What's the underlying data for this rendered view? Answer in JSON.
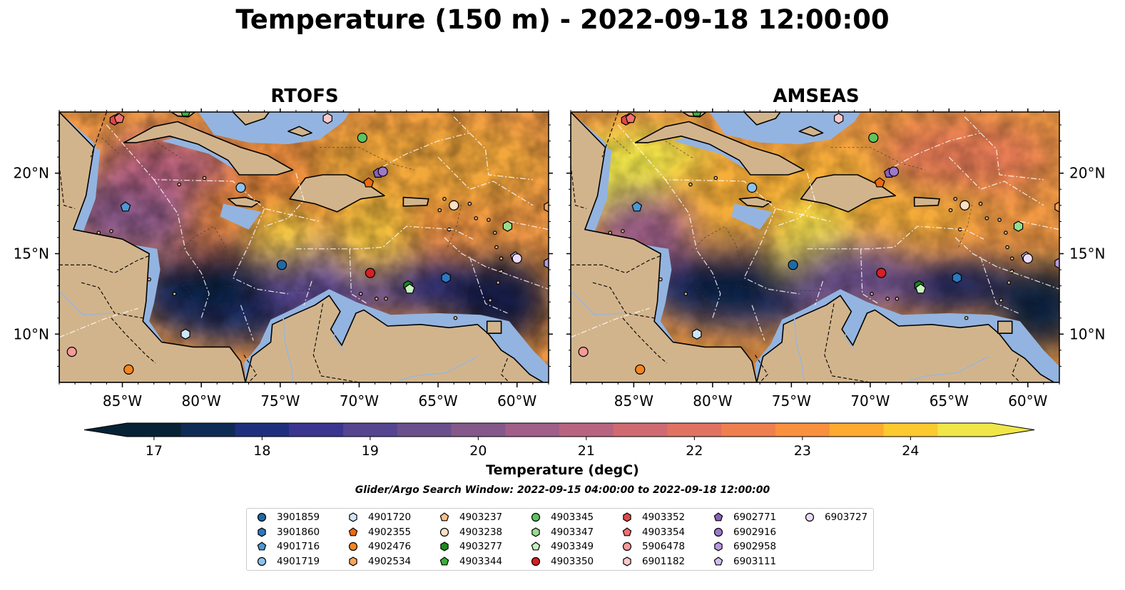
{
  "title": "Temperature (150 m) - 2022-09-18 12:00:00",
  "panels": [
    {
      "title": "RTOFS"
    },
    {
      "title": "AMSEAS"
    }
  ],
  "axes": {
    "lon_ticks": [
      "85°W",
      "80°W",
      "75°W",
      "70°W",
      "65°W",
      "60°W"
    ],
    "lat_ticks": [
      "20°N",
      "15°N",
      "10°N"
    ]
  },
  "colorbar": {
    "label": "Temperature (degC)",
    "ticks": [
      "17",
      "18",
      "19",
      "20",
      "21",
      "22",
      "23",
      "24"
    ],
    "range": [
      16.75,
      24.75
    ],
    "colors": [
      "#082235",
      "#0e2b55",
      "#1f2f7d",
      "#3a3590",
      "#55448f",
      "#6b4f8c",
      "#85588b",
      "#a05e88",
      "#b86480",
      "#cf6a72",
      "#e07262",
      "#ef7f4f",
      "#f9903e",
      "#fdaa30",
      "#fcc92f",
      "#f0e64a"
    ]
  },
  "search_window": "Glider/Argo Search Window: 2022-09-15 04:00:00 to 2022-09-18 12:00:00",
  "legend": [
    {
      "id": "3901859",
      "marker": "circle",
      "color": "#1f6aa5"
    },
    {
      "id": "3901860",
      "marker": "hexagon",
      "color": "#2b79c2"
    },
    {
      "id": "4901716",
      "marker": "pentagon",
      "color": "#4a98d6"
    },
    {
      "id": "4901719",
      "marker": "circle",
      "color": "#8cc3ee"
    },
    {
      "id": "4901720",
      "marker": "hexagon",
      "color": "#cfe6f8"
    },
    {
      "id": "4902355",
      "marker": "pentagon",
      "color": "#ee6a10"
    },
    {
      "id": "4902476",
      "marker": "circle",
      "color": "#f7851e"
    },
    {
      "id": "4902534",
      "marker": "hexagon",
      "color": "#fba65c"
    },
    {
      "id": "4903237",
      "marker": "pentagon",
      "color": "#fcc08a"
    },
    {
      "id": "4903238",
      "marker": "circle",
      "color": "#fde0c4"
    },
    {
      "id": "4903277",
      "marker": "hexagon",
      "color": "#1d8a1d"
    },
    {
      "id": "4903344",
      "marker": "pentagon",
      "color": "#3cb03c"
    },
    {
      "id": "4903345",
      "marker": "circle",
      "color": "#5ec45e"
    },
    {
      "id": "4903347",
      "marker": "hexagon",
      "color": "#98dc90"
    },
    {
      "id": "4903349",
      "marker": "pentagon",
      "color": "#c8f0c0"
    },
    {
      "id": "4903350",
      "marker": "circle",
      "color": "#d62022"
    },
    {
      "id": "4903352",
      "marker": "hexagon",
      "color": "#e04848"
    },
    {
      "id": "4903354",
      "marker": "pentagon",
      "color": "#f07070"
    },
    {
      "id": "5906478",
      "marker": "circle",
      "color": "#f79a98"
    },
    {
      "id": "6901182",
      "marker": "hexagon",
      "color": "#fccaca"
    },
    {
      "id": "6902771",
      "marker": "pentagon",
      "color": "#8a62b8"
    },
    {
      "id": "6902916",
      "marker": "circle",
      "color": "#9d78cc"
    },
    {
      "id": "6902958",
      "marker": "hexagon",
      "color": "#b89ae0"
    },
    {
      "id": "6903111",
      "marker": "pentagon",
      "color": "#d2bdf0"
    },
    {
      "id": "6903727",
      "marker": "circle",
      "color": "#ecdcfa"
    }
  ],
  "chart_data": {
    "type": "map",
    "lon_range": [
      -89,
      -58
    ],
    "lat_range": [
      7,
      23.8
    ],
    "markers": [
      {
        "id": "3901859",
        "lon": -74.9,
        "lat": 14.3
      },
      {
        "id": "3901860",
        "lon": -64.5,
        "lat": 13.5
      },
      {
        "id": "4901716",
        "lon": -84.8,
        "lat": 17.9
      },
      {
        "id": "4901719",
        "lon": -77.5,
        "lat": 19.1
      },
      {
        "id": "4901720",
        "lon": -81.0,
        "lat": 10.0
      },
      {
        "id": "4902355",
        "lon": -69.4,
        "lat": 19.4
      },
      {
        "id": "4902476",
        "lon": -84.6,
        "lat": 7.8
      },
      {
        "id": "4902534",
        "lon": -58.0,
        "lat": 17.9
      },
      {
        "id": "4903237",
        "lon": -85.3,
        "lat": 23.4
      },
      {
        "id": "4903238",
        "lon": -64.0,
        "lat": 18.0
      },
      {
        "id": "4903277",
        "lon": -66.9,
        "lat": 13.0
      },
      {
        "id": "4903344",
        "lon": -81.0,
        "lat": 23.8
      },
      {
        "id": "4903345",
        "lon": -69.8,
        "lat": 22.2
      },
      {
        "id": "4903347",
        "lon": -60.6,
        "lat": 16.7
      },
      {
        "id": "4903349",
        "lon": -66.8,
        "lat": 12.8
      },
      {
        "id": "4903350",
        "lon": -69.3,
        "lat": 13.8
      },
      {
        "id": "4903352",
        "lon": -85.5,
        "lat": 23.3
      },
      {
        "id": "4903354",
        "lon": -85.2,
        "lat": 23.4
      },
      {
        "id": "5906478",
        "lon": -88.2,
        "lat": 8.9
      },
      {
        "id": "6901182",
        "lon": -72.0,
        "lat": 23.4
      },
      {
        "id": "6902771",
        "lon": -68.8,
        "lat": 20.0
      },
      {
        "id": "6902916",
        "lon": -68.5,
        "lat": 20.1
      },
      {
        "id": "6902958",
        "lon": -58.0,
        "lat": 14.4
      },
      {
        "id": "6903111",
        "lon": -60.1,
        "lat": 14.8
      },
      {
        "id": "6903727",
        "lon": -60.0,
        "lat": 14.7
      }
    ]
  }
}
